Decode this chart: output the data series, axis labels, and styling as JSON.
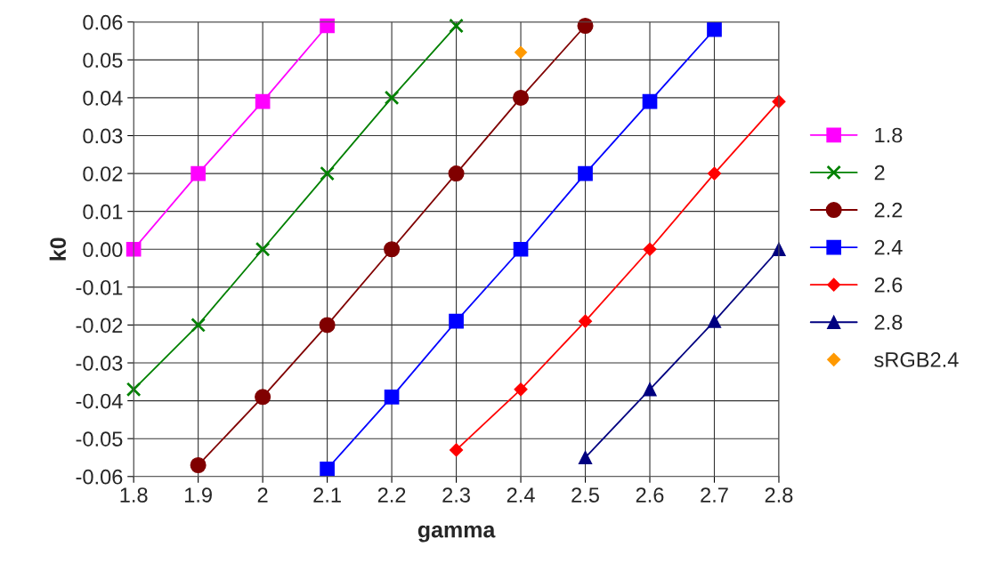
{
  "chart_data": {
    "type": "line",
    "xlabel": "gamma",
    "ylabel": "k0",
    "xlim": [
      1.8,
      2.8
    ],
    "xticks": [
      1.8,
      1.9,
      2,
      2.1,
      2.2,
      2.3,
      2.4,
      2.5,
      2.6,
      2.7,
      2.8
    ],
    "ylim": [
      -0.06,
      0.06
    ],
    "yticks": [
      -0.06,
      -0.05,
      -0.04,
      -0.03,
      -0.02,
      -0.01,
      {
        "value": 0,
        "label": "0.00"
      },
      0.01,
      0.02,
      0.03,
      0.04,
      0.05,
      0.06
    ],
    "grid": true,
    "legend": "right",
    "line_style": "solid",
    "series": [
      {
        "name": "1.8",
        "color": "#ff00ff",
        "marker": "square",
        "x": [
          1.8,
          1.9,
          2.0,
          2.1
        ],
        "values": [
          0.0,
          0.02,
          0.039,
          0.059
        ]
      },
      {
        "name": "2",
        "color": "#008000",
        "marker": "cross",
        "x": [
          1.8,
          1.9,
          2.0,
          2.1,
          2.2,
          2.3
        ],
        "values": [
          -0.037,
          -0.02,
          0.0,
          0.02,
          0.04,
          0.059
        ]
      },
      {
        "name": "2.2",
        "color": "#800000",
        "marker": "circle",
        "x": [
          1.9,
          2.0,
          2.1,
          2.2,
          2.3,
          2.4,
          2.5
        ],
        "values": [
          -0.057,
          -0.039,
          -0.02,
          0.0,
          0.02,
          0.04,
          0.059
        ]
      },
      {
        "name": "2.4",
        "color": "#0000ff",
        "marker": "square",
        "x": [
          2.1,
          2.2,
          2.3,
          2.4,
          2.5,
          2.6,
          2.7
        ],
        "values": [
          -0.058,
          -0.039,
          -0.019,
          0.0,
          0.02,
          0.039,
          0.058
        ]
      },
      {
        "name": "2.6",
        "color": "#ff0000",
        "marker": "diamond",
        "x": [
          2.3,
          2.4,
          2.5,
          2.6,
          2.7,
          2.8
        ],
        "values": [
          -0.053,
          -0.037,
          -0.019,
          0.0,
          0.02,
          0.039
        ]
      },
      {
        "name": "2.8",
        "color": "#000080",
        "marker": "triangle",
        "x": [
          2.5,
          2.6,
          2.7,
          2.8
        ],
        "values": [
          -0.055,
          -0.037,
          -0.019,
          0.0
        ]
      },
      {
        "name": "sRGB2.4",
        "type": "scatter",
        "color": "#ff9900",
        "marker": "diamond",
        "x": [
          2.4
        ],
        "values": [
          0.052
        ]
      }
    ]
  }
}
